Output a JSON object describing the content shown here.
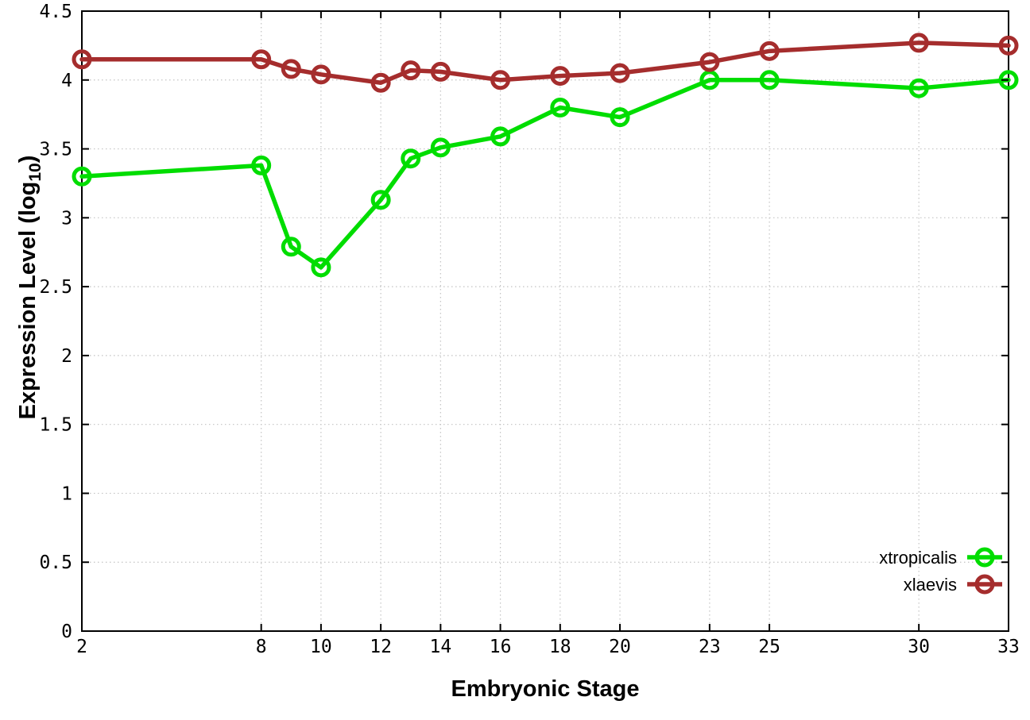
{
  "figure": {
    "background_color": "#ffffff",
    "axis_color": "#000000",
    "grid_color": "#c3c3c3"
  },
  "chart_data": {
    "type": "line",
    "title": "",
    "xlabel": "Embryonic Stage",
    "ylabel": "Expression Level (log10)",
    "ylabel_parts": {
      "main": "Expression Level (log",
      "sub": "10",
      "close": ")"
    },
    "xlim": [
      2,
      33
    ],
    "ylim": [
      0,
      4.5
    ],
    "grid": true,
    "grid_style": "dotted",
    "legend_position": "inside bottom-right",
    "xticks": [
      2,
      8,
      10,
      12,
      14,
      16,
      18,
      20,
      23,
      25,
      30,
      33
    ],
    "xtick_labels": [
      "2",
      "8",
      "10",
      "12",
      "14",
      "16",
      "18",
      "20",
      "23",
      "25",
      "30",
      "33"
    ],
    "yticks": [
      0,
      0.5,
      1,
      1.5,
      2,
      2.5,
      3,
      3.5,
      4,
      4.5
    ],
    "ytick_labels": [
      "0",
      "0.5",
      "1",
      "1.5",
      "2",
      "2.5",
      "3",
      "3.5",
      "4",
      "4.5"
    ],
    "x": [
      2,
      8,
      9,
      10,
      12,
      13,
      14,
      16,
      18,
      20,
      23,
      25,
      30,
      33
    ],
    "series": [
      {
        "name": "xtropicalis",
        "color": "#00dd00",
        "marker": "open-circle",
        "values": [
          3.3,
          3.38,
          2.79,
          2.64,
          3.13,
          3.43,
          3.51,
          3.59,
          3.8,
          3.73,
          4.0,
          4.0,
          3.94,
          4.0
        ]
      },
      {
        "name": "xlaevis",
        "color": "#a52d2d",
        "marker": "open-circle",
        "values": [
          4.15,
          4.15,
          4.08,
          4.04,
          3.98,
          4.07,
          4.06,
          4.0,
          4.03,
          4.05,
          4.13,
          4.21,
          4.27,
          4.25
        ]
      }
    ]
  }
}
